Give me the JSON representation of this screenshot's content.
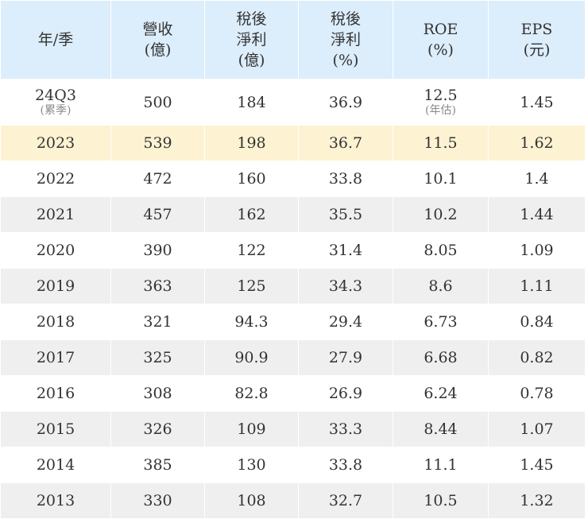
{
  "colors": {
    "header_bg": "#dcedfb",
    "highlight_bg": "#fdf3d2",
    "stripe_bg": "#efefef",
    "text": "#333333",
    "note": "#8a8a8a"
  },
  "table": {
    "headers": {
      "period": [
        "年/季"
      ],
      "revenue": [
        "營收",
        "(億)"
      ],
      "net_income": [
        "稅後",
        "淨利",
        "(億)"
      ],
      "net_margin": [
        "稅後",
        "淨利",
        "(%)"
      ],
      "roe": [
        "ROE",
        "(%)"
      ],
      "eps": [
        "EPS",
        "(元)"
      ]
    },
    "rows": [
      {
        "period": "24Q3",
        "period_note": "(累季)",
        "revenue": "500",
        "net_income": "184",
        "net_margin": "36.9",
        "roe": "12.5",
        "roe_note": "(年估)",
        "eps": "1.45"
      },
      {
        "period": "2023",
        "highlighted": true,
        "revenue": "539",
        "net_income": "198",
        "net_margin": "36.7",
        "roe": "11.5",
        "eps": "1.62"
      },
      {
        "period": "2022",
        "revenue": "472",
        "net_income": "160",
        "net_margin": "33.8",
        "roe": "10.1",
        "eps": "1.4"
      },
      {
        "period": "2021",
        "revenue": "457",
        "net_income": "162",
        "net_margin": "35.5",
        "roe": "10.2",
        "eps": "1.44"
      },
      {
        "period": "2020",
        "revenue": "390",
        "net_income": "122",
        "net_margin": "31.4",
        "roe": "8.05",
        "eps": "1.09"
      },
      {
        "period": "2019",
        "revenue": "363",
        "net_income": "125",
        "net_margin": "34.3",
        "roe": "8.6",
        "eps": "1.11"
      },
      {
        "period": "2018",
        "revenue": "321",
        "net_income": "94.3",
        "net_margin": "29.4",
        "roe": "6.73",
        "eps": "0.84"
      },
      {
        "period": "2017",
        "revenue": "325",
        "net_income": "90.9",
        "net_margin": "27.9",
        "roe": "6.68",
        "eps": "0.82"
      },
      {
        "period": "2016",
        "revenue": "308",
        "net_income": "82.8",
        "net_margin": "26.9",
        "roe": "6.24",
        "eps": "0.78"
      },
      {
        "period": "2015",
        "revenue": "326",
        "net_income": "109",
        "net_margin": "33.3",
        "roe": "8.44",
        "eps": "1.07"
      },
      {
        "period": "2014",
        "revenue": "385",
        "net_income": "130",
        "net_margin": "33.8",
        "roe": "11.1",
        "eps": "1.45"
      },
      {
        "period": "2013",
        "revenue": "330",
        "net_income": "108",
        "net_margin": "32.7",
        "roe": "10.5",
        "eps": "1.32"
      }
    ]
  }
}
